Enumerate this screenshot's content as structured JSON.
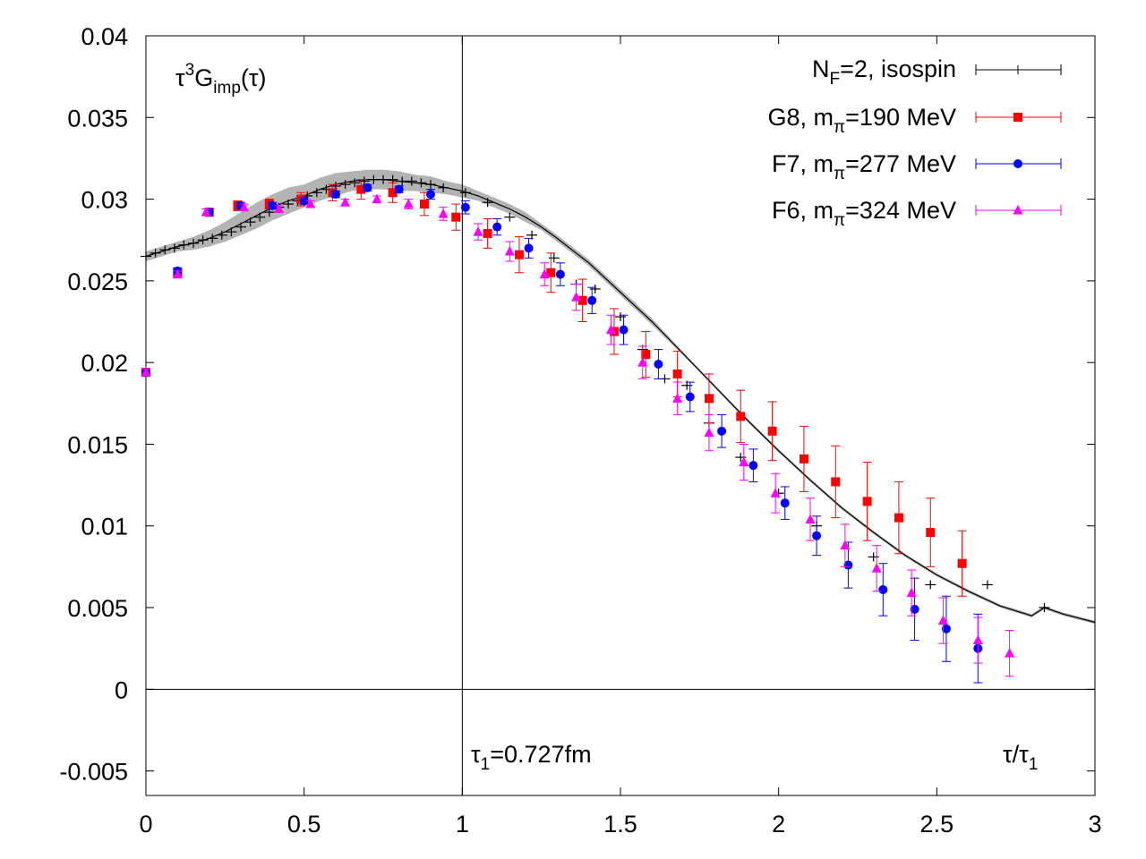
{
  "chart_data": {
    "type": "scatter",
    "title": "",
    "ylabel_base": "τ",
    "ylabel_sup": "3",
    "ylabel_main": "G",
    "ylabel_sub": "imp",
    "ylabel_tail": "(τ)",
    "xlabel_main": "τ/τ",
    "xlabel_sub": "1",
    "annotation_main": "τ",
    "annotation_sub": "1",
    "annotation_tail": "=0.727fm",
    "xlim": [
      0,
      3
    ],
    "ylim": [
      -0.0065,
      0.04
    ],
    "xticks": [
      0,
      0.5,
      1,
      1.5,
      2,
      2.5,
      3
    ],
    "xtick_labels": [
      "0",
      "0.5",
      "1",
      "1.5",
      "2",
      "2.5",
      "3"
    ],
    "yticks": [
      -0.005,
      0,
      0.005,
      0.01,
      0.015,
      0.02,
      0.025,
      0.03,
      0.035,
      0.04
    ],
    "ytick_labels": [
      "-0.005",
      "0",
      "0.005",
      "0.01",
      "0.015",
      "0.02",
      "0.025",
      "0.03",
      "0.035",
      "0.04"
    ],
    "vline_x": 1,
    "hline_y": 0,
    "legend_position": "top-right",
    "series": [
      {
        "name": "NF=2, isospin",
        "legend_main": "N",
        "legend_sub": "F",
        "legend_tail": "=2, isospin",
        "color": "#000000",
        "marker": "plus",
        "line": true,
        "band": true,
        "x": [
          0.0,
          0.05,
          0.1,
          0.15,
          0.2,
          0.25,
          0.3,
          0.35,
          0.4,
          0.45,
          0.5,
          0.55,
          0.6,
          0.65,
          0.7,
          0.75,
          0.8,
          0.85,
          0.9,
          0.95,
          1.0,
          1.05,
          1.1,
          1.15,
          1.2,
          1.25,
          1.3,
          1.4,
          1.5,
          1.6,
          1.7,
          1.8,
          1.9,
          2.0,
          2.1,
          2.2,
          2.3,
          2.4,
          2.5,
          2.6,
          2.7,
          2.8,
          2.84,
          2.9,
          3.0
        ],
        "y": [
          0.0265,
          0.0268,
          0.0271,
          0.0273,
          0.0276,
          0.028,
          0.0285,
          0.029,
          0.0295,
          0.0299,
          0.0302,
          0.0306,
          0.0309,
          0.0311,
          0.0312,
          0.0312,
          0.0311,
          0.031,
          0.0309,
          0.0307,
          0.0305,
          0.0302,
          0.0298,
          0.0294,
          0.0289,
          0.0283,
          0.0276,
          0.0261,
          0.0243,
          0.0225,
          0.0205,
          0.0185,
          0.0165,
          0.0146,
          0.0128,
          0.0111,
          0.0096,
          0.0082,
          0.007,
          0.006,
          0.0051,
          0.0045,
          0.005,
          0.0046,
          0.0041
        ],
        "err": [
          0.0003,
          0.0003,
          0.0003,
          0.0004,
          0.0005,
          0.0006,
          0.0007,
          0.0008,
          0.0008,
          0.0008,
          0.0007,
          0.0007,
          0.0007,
          0.0006,
          0.0006,
          0.0006,
          0.0006,
          0.0005,
          0.0005,
          0.0004,
          0.0004,
          0.0003,
          0.0003,
          0.0003,
          0.0003,
          0.0002,
          0.0002,
          0.0002,
          0.0002,
          0.0002,
          0.0001,
          0.0001,
          0.0001,
          0.0001,
          0.0001,
          0.0001,
          0.0001,
          0.0001,
          0.0001,
          0.0001,
          0.0001,
          0.0001,
          0.0001,
          0.0001,
          0.0001
        ],
        "marker_x": [
          0.0,
          0.03,
          0.06,
          0.09,
          0.12,
          0.15,
          0.18,
          0.21,
          0.24,
          0.27,
          0.3,
          0.33,
          0.36,
          0.39,
          0.42,
          0.45,
          0.48,
          0.51,
          0.54,
          0.57,
          0.6,
          0.63,
          0.66,
          0.69,
          0.72,
          0.75,
          0.78,
          0.81,
          0.84,
          0.87,
          0.9,
          0.94,
          1.01,
          1.08,
          1.15,
          1.22,
          1.29,
          1.36,
          1.42,
          1.5,
          1.57,
          1.64,
          1.71,
          1.78,
          1.88,
          2.0,
          2.12,
          2.3,
          2.48,
          2.66,
          2.84
        ],
        "marker_y": [
          0.0265,
          0.0267,
          0.0269,
          0.027,
          0.0272,
          0.0273,
          0.0275,
          0.0276,
          0.0278,
          0.028,
          0.0283,
          0.0286,
          0.0289,
          0.0292,
          0.0295,
          0.0297,
          0.0299,
          0.0302,
          0.0304,
          0.0306,
          0.0308,
          0.0309,
          0.031,
          0.0311,
          0.0312,
          0.0312,
          0.0312,
          0.0311,
          0.0311,
          0.031,
          0.0309,
          0.0307,
          0.0304,
          0.0298,
          0.0289,
          0.0278,
          0.0264,
          0.0248,
          0.0245,
          0.0228,
          0.0208,
          0.019,
          0.0186,
          0.0163,
          0.0142,
          0.012,
          0.01,
          0.0081,
          0.0064,
          0.0064,
          0.005
        ]
      },
      {
        "name": "G8, mπ=190 MeV",
        "legend_main": "G8, m",
        "legend_sub": "π",
        "legend_tail": "=190 MeV",
        "color": "#ff0000",
        "marker": "square",
        "x": [
          0.0,
          0.1,
          0.2,
          0.29,
          0.39,
          0.49,
          0.59,
          0.68,
          0.78,
          0.88,
          0.98,
          1.08,
          1.18,
          1.28,
          1.38,
          1.48,
          1.58,
          1.68,
          1.78,
          1.88,
          1.98,
          2.08,
          2.18,
          2.28,
          2.38,
          2.48,
          2.58
        ],
        "y": [
          0.0194,
          0.0255,
          0.0292,
          0.0296,
          0.0297,
          0.03,
          0.0304,
          0.0306,
          0.0304,
          0.0297,
          0.0289,
          0.0279,
          0.0266,
          0.0255,
          0.0238,
          0.0219,
          0.0205,
          0.0193,
          0.0178,
          0.0167,
          0.0158,
          0.0141,
          0.0127,
          0.0115,
          0.0105,
          0.0096,
          0.0077
        ],
        "err": [
          0.0002,
          0.0002,
          0.0002,
          0.0003,
          0.0003,
          0.0004,
          0.0005,
          0.0006,
          0.0006,
          0.0007,
          0.0008,
          0.0009,
          0.0011,
          0.0012,
          0.0013,
          0.0014,
          0.0014,
          0.0014,
          0.0015,
          0.0016,
          0.0018,
          0.002,
          0.0022,
          0.0024,
          0.0022,
          0.0021,
          0.002
        ]
      },
      {
        "name": "F7, mπ=277 MeV",
        "legend_main": "F7, m",
        "legend_sub": "π",
        "legend_tail": "=277 MeV",
        "color": "#0000ff",
        "marker": "circle",
        "x": [
          0.0,
          0.1,
          0.2,
          0.3,
          0.4,
          0.5,
          0.6,
          0.7,
          0.8,
          0.9,
          1.01,
          1.11,
          1.21,
          1.31,
          1.41,
          1.51,
          1.62,
          1.72,
          1.82,
          1.92,
          2.02,
          2.12,
          2.22,
          2.33,
          2.43,
          2.53,
          2.63
        ],
        "y": [
          0.0194,
          0.0256,
          0.0292,
          0.0296,
          0.0296,
          0.0299,
          0.0303,
          0.0307,
          0.0306,
          0.0303,
          0.0295,
          0.0283,
          0.027,
          0.0254,
          0.0238,
          0.022,
          0.0199,
          0.0179,
          0.0158,
          0.0137,
          0.0114,
          0.0094,
          0.0076,
          0.0061,
          0.0049,
          0.0037,
          0.0025
        ],
        "err": [
          0.0002,
          0.0002,
          0.0002,
          0.0002,
          0.0002,
          0.0002,
          0.0002,
          0.0002,
          0.0002,
          0.0003,
          0.0004,
          0.0005,
          0.0006,
          0.0007,
          0.0008,
          0.0009,
          0.0009,
          0.0009,
          0.001,
          0.001,
          0.001,
          0.0012,
          0.0014,
          0.0016,
          0.0019,
          0.002,
          0.0021
        ]
      },
      {
        "name": "F6, mπ=324 MeV",
        "legend_main": "F6, m",
        "legend_sub": "π",
        "legend_tail": "=324 MeV",
        "color": "#ff00ff",
        "marker": "triangle",
        "x": [
          0.0,
          0.1,
          0.19,
          0.31,
          0.42,
          0.52,
          0.63,
          0.73,
          0.83,
          0.94,
          1.05,
          1.15,
          1.26,
          1.36,
          1.47,
          1.57,
          1.68,
          1.78,
          1.89,
          1.99,
          2.1,
          2.21,
          2.31,
          2.42,
          2.52,
          2.63,
          2.73
        ],
        "y": [
          0.0194,
          0.0254,
          0.0292,
          0.0295,
          0.0294,
          0.0297,
          0.0298,
          0.03,
          0.0297,
          0.0291,
          0.028,
          0.0268,
          0.0254,
          0.024,
          0.022,
          0.02,
          0.0178,
          0.0157,
          0.0139,
          0.012,
          0.0104,
          0.0088,
          0.0074,
          0.0059,
          0.0042,
          0.003,
          0.0022
        ],
        "err": [
          0.0002,
          0.0002,
          0.0002,
          0.0002,
          0.0002,
          0.0002,
          0.0002,
          0.0002,
          0.0003,
          0.0004,
          0.0005,
          0.0006,
          0.0007,
          0.0008,
          0.0009,
          0.001,
          0.001,
          0.0011,
          0.0011,
          0.0012,
          0.0013,
          0.0013,
          0.0014,
          0.0014,
          0.0014,
          0.0014,
          0.0014
        ]
      }
    ]
  }
}
